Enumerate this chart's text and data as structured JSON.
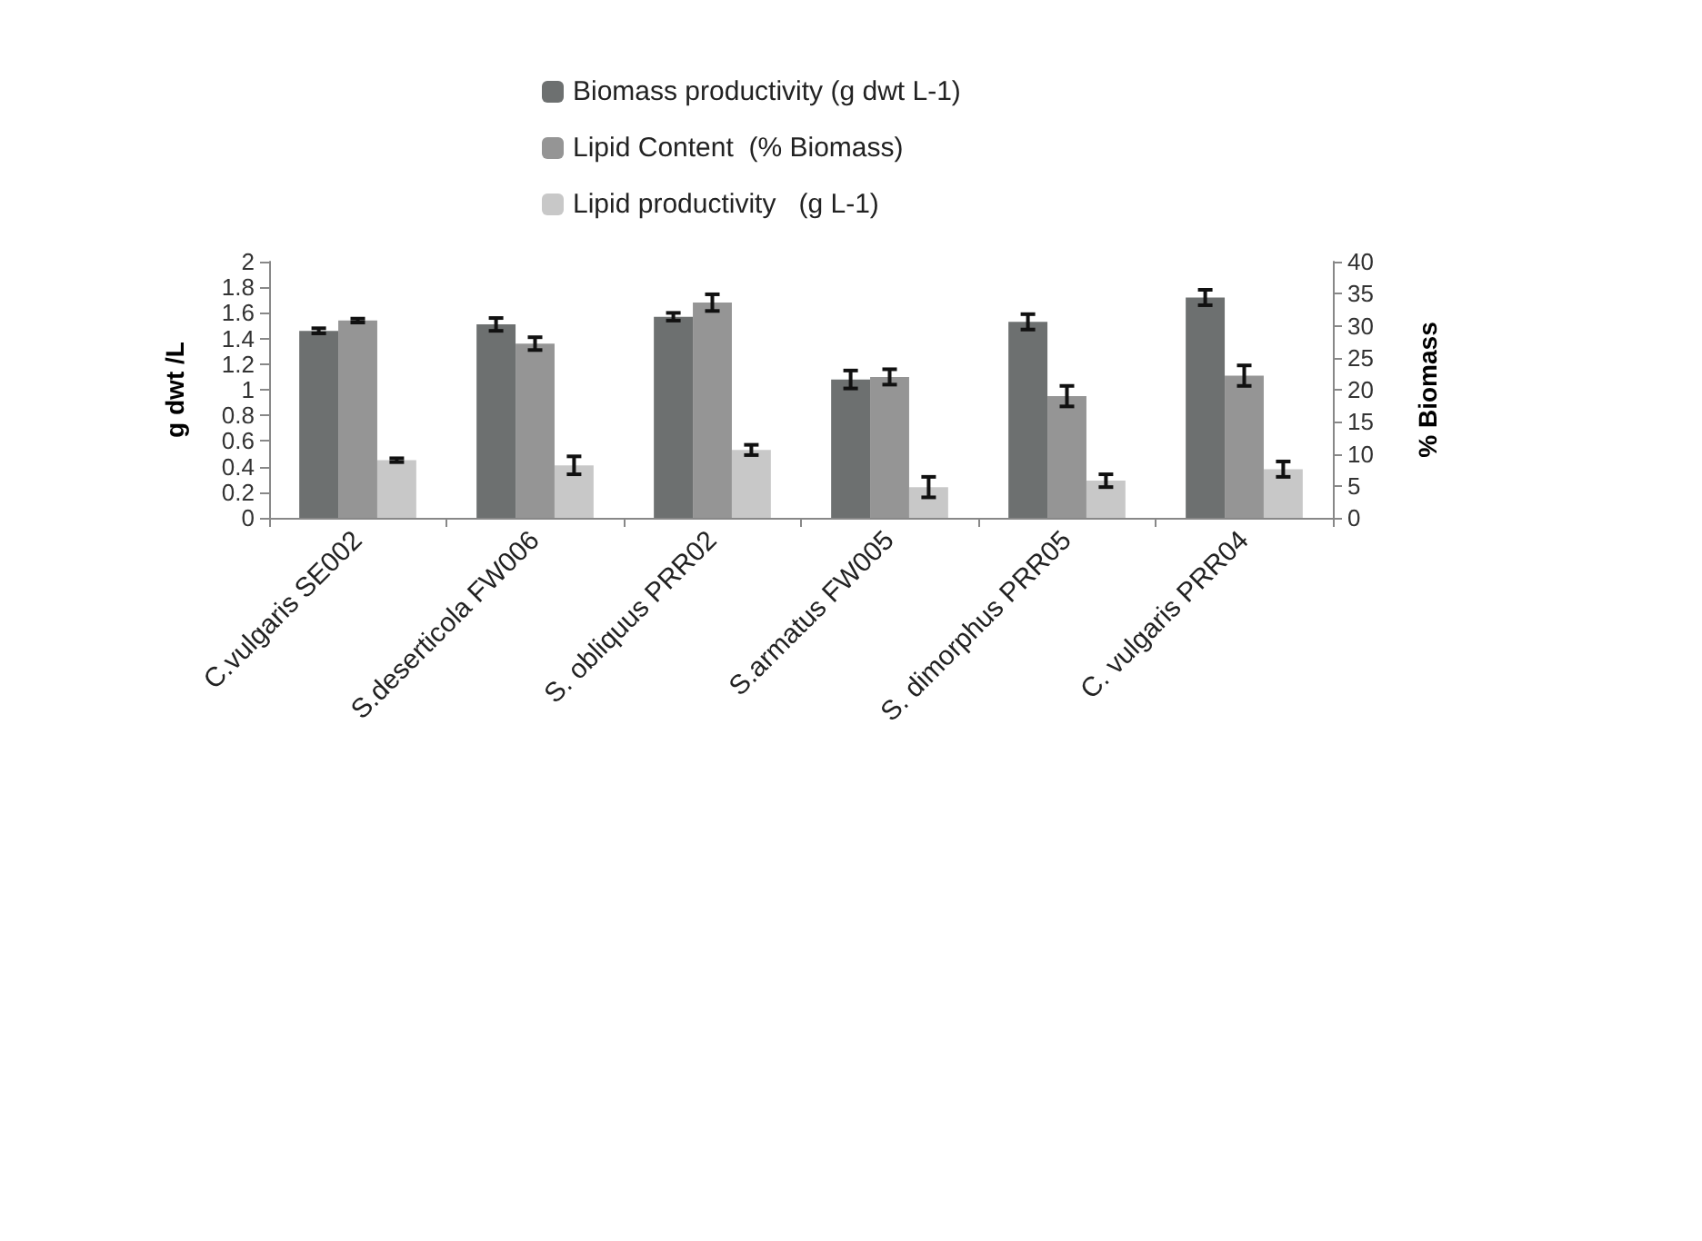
{
  "chart_data": {
    "type": "bar",
    "categories": [
      "C.vulgaris SE002",
      "S.deserticola FW006",
      "S. obliquus PRR02",
      "S.armatus FW005",
      "S. dimorphus PRR05",
      "C. vulgaris PRR04"
    ],
    "series": [
      {
        "name": "Biomass productivity (g dwt L-1)",
        "color": "#6d7070",
        "values": [
          1.46,
          1.51,
          1.57,
          1.08,
          1.53,
          1.72
        ],
        "errors": [
          0.02,
          0.05,
          0.03,
          0.07,
          0.06,
          0.06
        ]
      },
      {
        "name": "Lipid Content  (% Biomass)",
        "color": "#959595",
        "axis": "y2",
        "values": [
          30.8,
          27.2,
          33.6,
          22.0,
          19.0,
          22.2
        ],
        "errors": [
          0.3,
          1.0,
          1.3,
          1.2,
          1.6,
          1.6
        ]
      },
      {
        "name": "Lipid productivity   (g L-1)",
        "color": "#c8c8c8",
        "values": [
          0.45,
          0.41,
          0.53,
          0.24,
          0.29,
          0.38
        ],
        "errors": [
          0.015,
          0.07,
          0.04,
          0.08,
          0.05,
          0.06
        ]
      }
    ],
    "ylabel": "g dwt /L",
    "y2label": "% Biomass",
    "ylim": [
      0,
      2
    ],
    "yticks": [
      0,
      0.2,
      0.4,
      0.6,
      0.8,
      1,
      1.2,
      1.4,
      1.6,
      1.8,
      2
    ],
    "y2lim": [
      0,
      40
    ],
    "y2ticks": [
      0,
      5,
      10,
      15,
      20,
      25,
      30,
      35,
      40
    ],
    "legend": "top",
    "grid": false
  }
}
